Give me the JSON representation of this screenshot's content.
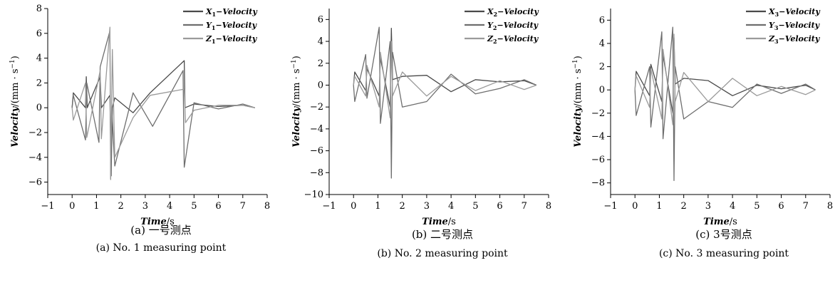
{
  "chart_data": [
    {
      "type": "line",
      "xlabel": {
        "var": "Time",
        "unit": "/s"
      },
      "ylabel": {
        "var": "Velocity",
        "unit": "/(mm · s",
        "exp": "−1",
        "close": ")"
      },
      "xlim": [
        -1,
        8
      ],
      "ylim": [
        -7,
        8
      ],
      "xticks": [
        "−1",
        "0",
        "1",
        "2",
        "3",
        "4",
        "5",
        "6",
        "7",
        "8"
      ],
      "yticks": [
        "−6",
        "−4",
        "−2",
        "0",
        "2",
        "4",
        "6",
        "8"
      ],
      "legend_position": "top-right",
      "caption_cn": "(a) 一号测点",
      "caption_en": "(a) No. 1 measuring point",
      "series": [
        {
          "name": "X1−Velocity",
          "axis": "X",
          "sub": "1",
          "color": "#4a4a4a",
          "x": [
            0,
            0.05,
            0.55,
            0.58,
            0.62,
            1.15,
            1.2,
            1.55,
            1.6,
            1.65,
            1.75,
            2.5,
            3.2,
            4.6,
            4.63,
            5.0,
            6.0,
            7.0,
            7.5
          ],
          "y": [
            0,
            1.2,
            0,
            2.5,
            0,
            2.5,
            0,
            1.0,
            -5.5,
            0,
            0.8,
            -0.4,
            1.2,
            3.8,
            0,
            0.3,
            0.1,
            0.2,
            0
          ]
        },
        {
          "name": "Y1−Velocity",
          "axis": "Y",
          "sub": "1",
          "color": "#6e6e6e",
          "x": [
            0,
            0.05,
            0.55,
            0.6,
            1.1,
            1.15,
            1.55,
            1.58,
            1.62,
            1.75,
            2.5,
            3.3,
            4.55,
            4.6,
            5.0,
            6.0,
            7.0,
            7.5
          ],
          "y": [
            0,
            1.0,
            -2.6,
            2.0,
            -2.8,
            3.3,
            6.2,
            -5.7,
            0,
            -4.7,
            1.2,
            -1.5,
            3.0,
            -4.8,
            0.4,
            -0.1,
            0.3,
            0
          ]
        },
        {
          "name": "Z1−Velocity",
          "axis": "Z",
          "sub": "1",
          "color": "#9a9a9a",
          "x": [
            0,
            0.05,
            0.55,
            0.6,
            1.15,
            1.2,
            1.55,
            1.58,
            1.65,
            1.75,
            2.5,
            3.2,
            4.6,
            4.65,
            5.0,
            6.0,
            7.0,
            7.5
          ],
          "y": [
            0,
            -1.0,
            2.0,
            -2.4,
            3.0,
            -2.5,
            6.5,
            -5.8,
            4.7,
            -4.0,
            -0.8,
            1.0,
            1.5,
            -1.2,
            -0.2,
            0.2,
            0.2,
            0
          ]
        }
      ]
    },
    {
      "type": "line",
      "xlabel": {
        "var": "Time",
        "unit": "/s"
      },
      "ylabel": {
        "var": "Velocity",
        "unit": "/(mm · s",
        "exp": "−1",
        "close": ")"
      },
      "xlim": [
        -1,
        8
      ],
      "ylim": [
        -10,
        7
      ],
      "xticks": [
        "−1",
        "0",
        "1",
        "2",
        "3",
        "4",
        "5",
        "6",
        "7",
        "8"
      ],
      "yticks": [
        "−10",
        "−8",
        "−6",
        "−4",
        "−2",
        "0",
        "2",
        "4",
        "6"
      ],
      "legend_position": "top-right",
      "caption_cn": "(b) 二号测点",
      "caption_en": "(b) No. 2 measuring point",
      "series": [
        {
          "name": "X2−Velocity",
          "axis": "X",
          "sub": "2",
          "color": "#4a4a4a",
          "x": [
            0,
            0.05,
            0.5,
            0.55,
            1.05,
            1.1,
            1.5,
            1.55,
            1.6,
            2.0,
            3.0,
            4.0,
            5.0,
            6.0,
            7.0,
            7.5
          ],
          "y": [
            0,
            1.2,
            -0.5,
            1.5,
            -1.0,
            2.5,
            -2.0,
            5.2,
            0.5,
            0.8,
            0.9,
            -0.6,
            0.5,
            0.3,
            0.4,
            0
          ]
        },
        {
          "name": "Y2−Velocity",
          "axis": "Y",
          "sub": "2",
          "color": "#6e6e6e",
          "x": [
            0,
            0.05,
            0.5,
            0.55,
            1.05,
            1.1,
            1.5,
            1.55,
            1.6,
            2.0,
            3.0,
            4.0,
            5.0,
            6.0,
            7.0,
            7.5
          ],
          "y": [
            0,
            -1.5,
            2.8,
            -1.2,
            5.3,
            -3.5,
            4.0,
            -8.5,
            3.0,
            -2.0,
            -1.5,
            1.0,
            -0.8,
            -0.3,
            0.5,
            0
          ]
        },
        {
          "name": "Z2−Velocity",
          "axis": "Z",
          "sub": "2",
          "color": "#9a9a9a",
          "x": [
            0,
            0.05,
            0.5,
            0.55,
            1.05,
            1.1,
            1.5,
            1.55,
            1.6,
            2.0,
            3.0,
            4.0,
            5.0,
            6.0,
            7.0,
            7.5
          ],
          "y": [
            0,
            0.8,
            -1.0,
            1.8,
            -2.0,
            3.0,
            -3.0,
            4.0,
            -1.0,
            1.2,
            -1.0,
            0.8,
            -0.5,
            0.4,
            -0.4,
            0
          ]
        }
      ]
    },
    {
      "type": "line",
      "xlabel": {
        "var": "Time",
        "unit": "/s"
      },
      "ylabel": {
        "var": "Velocity",
        "unit": "/(mm · s",
        "exp": "−1",
        "close": ")"
      },
      "xlim": [
        -1,
        8
      ],
      "ylim": [
        -9,
        7
      ],
      "xticks": [
        "−1",
        "0",
        "1",
        "2",
        "3",
        "4",
        "5",
        "6",
        "7",
        "8"
      ],
      "yticks": [
        "−8",
        "−6",
        "−4",
        "−2",
        "0",
        "2",
        "4",
        "6"
      ],
      "legend_position": "top-right",
      "caption_cn": "(c) 3号测点",
      "caption_en": "(c) No. 3 measuring point",
      "series": [
        {
          "name": "X3−Velocity",
          "axis": "X",
          "sub": "3",
          "color": "#4a4a4a",
          "x": [
            0,
            0.05,
            0.6,
            0.65,
            1.1,
            1.15,
            1.55,
            1.6,
            1.65,
            2.0,
            3.0,
            4.0,
            5.0,
            6.0,
            7.0,
            7.4
          ],
          "y": [
            0,
            1.6,
            -0.5,
            2.2,
            -1.0,
            3.0,
            -2.0,
            4.5,
            0.5,
            1.0,
            0.8,
            -0.5,
            0.4,
            0.1,
            0.4,
            0
          ]
        },
        {
          "name": "Y3−Velocity",
          "axis": "Y",
          "sub": "3",
          "color": "#6e6e6e",
          "x": [
            0,
            0.05,
            0.6,
            0.65,
            1.1,
            1.15,
            1.55,
            1.6,
            1.65,
            2.0,
            3.0,
            4.0,
            5.0,
            6.0,
            7.0,
            7.4
          ],
          "y": [
            0,
            -2.2,
            2.0,
            -3.2,
            5.0,
            -4.2,
            5.4,
            -7.8,
            2.0,
            -2.5,
            -1.0,
            -1.5,
            0.5,
            -0.3,
            0.5,
            0
          ]
        },
        {
          "name": "Z3−Velocity",
          "axis": "Z",
          "sub": "3",
          "color": "#9a9a9a",
          "x": [
            0,
            0.05,
            0.6,
            0.65,
            1.1,
            1.15,
            1.55,
            1.6,
            1.65,
            2.0,
            3.0,
            4.0,
            5.0,
            6.0,
            7.0,
            7.4
          ],
          "y": [
            0,
            1.2,
            -1.5,
            1.8,
            -2.5,
            3.5,
            -3.0,
            4.8,
            -1.0,
            1.5,
            -1.0,
            1.0,
            -0.5,
            0.3,
            -0.4,
            0
          ]
        }
      ]
    }
  ]
}
